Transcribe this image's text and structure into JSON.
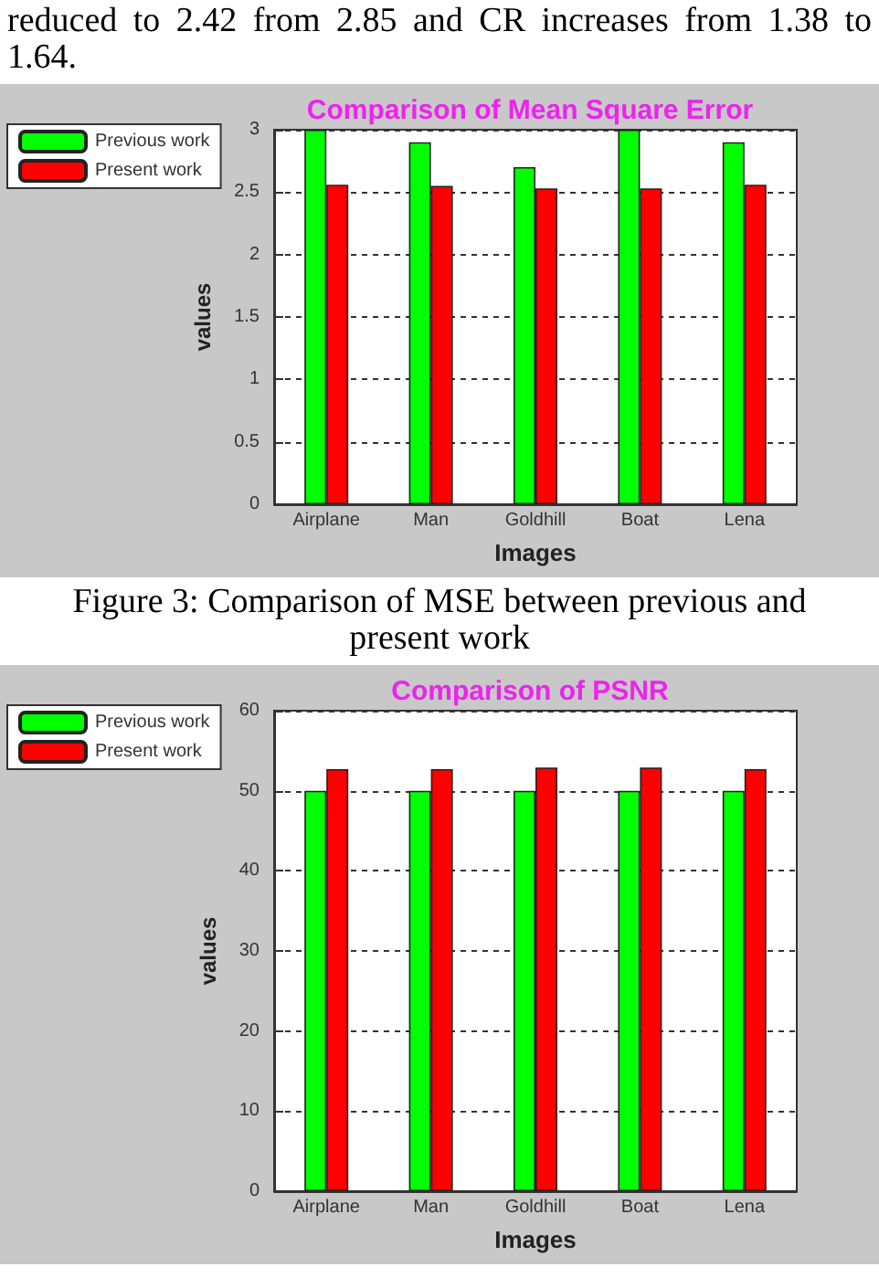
{
  "chart_data": [
    {
      "type": "bar",
      "title": "Comparison of Mean Square Error",
      "xlabel": "Images",
      "ylabel": "values",
      "annotations": [
        "reduced to 2.42 from 2.85 and CR increases from 1.38 to 1.64.",
        "Figure 3: Comparison of MSE between previous and present work"
      ],
      "categories": [
        "Airplane",
        "Man",
        "Goldhill",
        "Boat",
        "Lena"
      ],
      "series": [
        {
          "name": "Previous work",
          "color": "#00ff00",
          "values": [
            3.0,
            2.9,
            2.7,
            3.0,
            2.9
          ]
        },
        {
          "name": "Present work",
          "color": "#ff0000",
          "values": [
            2.56,
            2.55,
            2.53,
            2.53,
            2.56
          ]
        }
      ],
      "ylim": [
        0,
        3
      ],
      "yticks": [
        0,
        0.5,
        1,
        1.5,
        2,
        2.5,
        3
      ],
      "grid": "y",
      "legend": "top left"
    },
    {
      "type": "bar",
      "title": "Comparison of PSNR",
      "xlabel": "Images",
      "ylabel": "values",
      "categories": [
        "Airplane",
        "Man",
        "Goldhill",
        "Boat",
        "Lena"
      ],
      "series": [
        {
          "name": "Previous work",
          "color": "#00ff00",
          "values": [
            50,
            50,
            50,
            50,
            50
          ]
        },
        {
          "name": "Present work",
          "color": "#ff0000",
          "values": [
            52.7,
            52.7,
            52.9,
            52.9,
            52.7
          ]
        }
      ],
      "ylim": [
        0,
        60
      ],
      "yticks": [
        0,
        10,
        20,
        30,
        40,
        50,
        60
      ],
      "grid": "y",
      "legend": "top left"
    }
  ]
}
